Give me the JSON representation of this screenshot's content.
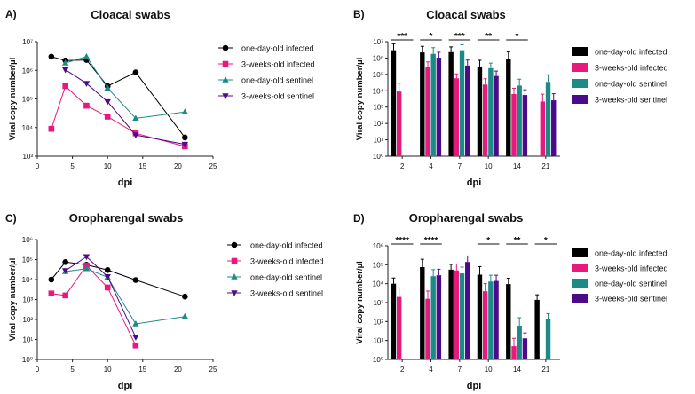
{
  "panels": [
    {
      "letter": "A)",
      "chart_data": {
        "type": "line",
        "title": "Cloacal swabs",
        "xlabel": "dpi",
        "ylabel": "Viral copy number/µl",
        "xlim": [
          0,
          25
        ],
        "xticks": [
          "0",
          "5",
          "10",
          "15",
          "20",
          "25"
        ],
        "yscale": "log",
        "ylim_exp": [
          3,
          7
        ],
        "legend_position": "right",
        "series": [
          {
            "name": "one-day-old infected",
            "marker": "circle",
            "color": "#000000",
            "x": [
              2,
              4,
              7,
              10,
              14,
              21
            ],
            "y": [
              3000000,
              2200000,
              2300000,
              280000,
              850000,
              4500
            ]
          },
          {
            "name": "3-weeks-old infected",
            "marker": "square",
            "color": "#e8197d",
            "x": [
              2,
              4,
              7,
              10,
              14,
              21
            ],
            "y": [
              9000,
              280000,
              58000,
              24000,
              6300,
              2200
            ]
          },
          {
            "name": "one-day-old sentinel",
            "marker": "triangle-up",
            "color": "#1c8a87",
            "x": [
              4,
              7,
              10,
              14,
              21
            ],
            "y": [
              1800000,
              3000000,
              240000,
              21000,
              35000
            ]
          },
          {
            "name": "3-weeks-old sentinel",
            "marker": "triangle-down",
            "color": "#4b0a8a",
            "x": [
              4,
              7,
              10,
              14,
              21
            ],
            "y": [
              1050000,
              350000,
              80000,
              5500,
              2600
            ]
          }
        ]
      }
    },
    {
      "letter": "B)",
      "chart_data": {
        "type": "bar",
        "title": "Cloacal swabs",
        "xlabel": "dpi",
        "ylabel": "Viral copy number/µl",
        "categories": [
          "2",
          "4",
          "7",
          "10",
          "14",
          "21"
        ],
        "yscale": "log",
        "ylim_exp": [
          0,
          7
        ],
        "legend_position": "right",
        "series": [
          {
            "name": "one-day-old infected",
            "color": "#000000",
            "values": [
              3000000,
              2200000,
              2300000,
              280000,
              850000,
              null
            ],
            "errors": [
              4500000,
              3000000,
              2500000,
              450000,
              1500000,
              null
            ]
          },
          {
            "name": "3-weeks-old infected",
            "color": "#e8197d",
            "values": [
              9000,
              280000,
              58000,
              24000,
              6300,
              2200
            ],
            "errors": [
              20000,
              300000,
              50000,
              30000,
              8000,
              4000
            ]
          },
          {
            "name": "one-day-old sentinel",
            "color": "#1c8a87",
            "values": [
              null,
              1800000,
              3000000,
              240000,
              21000,
              35000
            ],
            "errors": [
              null,
              2500000,
              3500000,
              250000,
              30000,
              60000
            ]
          },
          {
            "name": "3-weeks-old sentinel",
            "color": "#4b0a8a",
            "values": [
              null,
              1050000,
              350000,
              80000,
              5500,
              2600
            ],
            "errors": [
              null,
              1200000,
              400000,
              80000,
              6000,
              4000
            ]
          }
        ],
        "significance": [
          {
            "category": "2",
            "label": "***"
          },
          {
            "category": "4",
            "label": "*"
          },
          {
            "category": "7",
            "label": "***"
          },
          {
            "category": "10",
            "label": "**"
          },
          {
            "category": "14",
            "label": "*"
          }
        ]
      }
    },
    {
      "letter": "C)",
      "chart_data": {
        "type": "line",
        "title": "Oropharengal swabs",
        "xlabel": "dpi",
        "ylabel": "Viral copy number/µl",
        "xlim": [
          0,
          25
        ],
        "xticks": [
          "0",
          "5",
          "10",
          "15",
          "20",
          "25"
        ],
        "yscale": "log",
        "ylim_exp": [
          0,
          6
        ],
        "legend_position": "right",
        "series": [
          {
            "name": "one-day-old infected",
            "marker": "circle",
            "color": "#000000",
            "x": [
              2,
              4,
              7,
              10,
              14,
              21
            ],
            "y": [
              10000,
              75000,
              55000,
              30000,
              9500,
              1400
            ]
          },
          {
            "name": "3-weeks-old infected",
            "marker": "square",
            "color": "#e8197d",
            "x": [
              2,
              4,
              7,
              10,
              14
            ],
            "y": [
              2000,
              1600,
              50000,
              4000,
              5
            ]
          },
          {
            "name": "one-day-old sentinel",
            "marker": "triangle-up",
            "color": "#1c8a87",
            "x": [
              4,
              7,
              10,
              14,
              21
            ],
            "y": [
              25000,
              35000,
              13000,
              60,
              140
            ]
          },
          {
            "name": "3-weeks-old sentinel",
            "marker": "triangle-down",
            "color": "#4b0a8a",
            "x": [
              4,
              7,
              10,
              14
            ],
            "y": [
              28000,
              140000,
              14000,
              13
            ]
          }
        ]
      }
    },
    {
      "letter": "D)",
      "chart_data": {
        "type": "bar",
        "title": "Oropharengal swabs",
        "xlabel": "dpi",
        "ylabel": "Viral copy number/µl",
        "categories": [
          "2",
          "4",
          "7",
          "10",
          "14",
          "21"
        ],
        "yscale": "log",
        "ylim_exp": [
          0,
          6
        ],
        "legend_position": "right",
        "series": [
          {
            "name": "one-day-old infected",
            "color": "#000000",
            "values": [
              10000,
              75000,
              55000,
              30000,
              9500,
              1400
            ],
            "errors": [
              10000,
              120000,
              50000,
              50000,
              10000,
              1200
            ]
          },
          {
            "name": "3-weeks-old infected",
            "color": "#e8197d",
            "values": [
              2000,
              1600,
              50000,
              4000,
              5,
              null
            ],
            "errors": [
              4000,
              2500,
              60000,
              6000,
              8,
              null
            ]
          },
          {
            "name": "one-day-old sentinel",
            "color": "#1c8a87",
            "values": [
              null,
              25000,
              35000,
              13000,
              60,
              140
            ],
            "errors": [
              null,
              30000,
              40000,
              15000,
              100,
              120
            ]
          },
          {
            "name": "3-weeks-old sentinel",
            "color": "#4b0a8a",
            "values": [
              null,
              28000,
              140000,
              14000,
              13,
              null
            ],
            "errors": [
              null,
              30000,
              150000,
              14000,
              12,
              null
            ]
          }
        ],
        "significance": [
          {
            "category": "2",
            "label": "****"
          },
          {
            "category": "4",
            "label": "****"
          },
          {
            "category": "10",
            "label": "*"
          },
          {
            "category": "14",
            "label": "**"
          },
          {
            "category": "21",
            "label": "*"
          }
        ]
      }
    }
  ]
}
